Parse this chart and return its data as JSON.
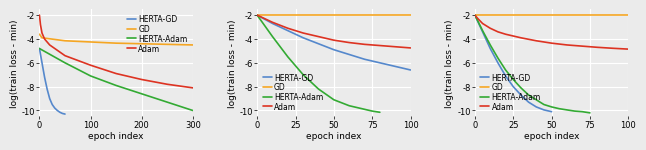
{
  "subplots": [
    {
      "xlim": [
        0,
        300
      ],
      "xticks": [
        0,
        100,
        200,
        300
      ],
      "ylim": [
        -10.5,
        -1.5
      ],
      "yticks": [
        -2,
        -4,
        -6,
        -8,
        -10
      ],
      "legend_loc": "upper right",
      "lines": [
        {
          "label": "HERTA-GD",
          "color": "#5588cc",
          "x": [
            0,
            5,
            10,
            15,
            20,
            25,
            30,
            35,
            40,
            45,
            50
          ],
          "y": [
            -4.8,
            -6.0,
            -7.2,
            -8.2,
            -9.0,
            -9.5,
            -9.8,
            -10.0,
            -10.15,
            -10.25,
            -10.3
          ]
        },
        {
          "label": "GD",
          "color": "#f5a623",
          "x": [
            0,
            5,
            50,
            100,
            150,
            200,
            250,
            300
          ],
          "y": [
            -3.6,
            -3.9,
            -4.15,
            -4.25,
            -4.35,
            -4.4,
            -4.45,
            -4.5
          ]
        },
        {
          "label": "HERTA-Adam",
          "color": "#33aa33",
          "x": [
            0,
            50,
            100,
            150,
            200,
            250,
            300
          ],
          "y": [
            -4.8,
            -6.0,
            -7.1,
            -7.9,
            -8.6,
            -9.3,
            -10.0
          ]
        },
        {
          "label": "Adam",
          "color": "#dd3322",
          "x": [
            0,
            2,
            5,
            10,
            20,
            50,
            100,
            150,
            200,
            250,
            300
          ],
          "y": [
            -2.0,
            -2.8,
            -3.5,
            -4.0,
            -4.5,
            -5.4,
            -6.2,
            -6.9,
            -7.4,
            -7.8,
            -8.1
          ]
        }
      ]
    },
    {
      "xlim": [
        0,
        100
      ],
      "xticks": [
        0,
        25,
        50,
        75,
        100
      ],
      "ylim": [
        -10.5,
        -1.5
      ],
      "yticks": [
        -2,
        -4,
        -6,
        -8,
        -10
      ],
      "legend_loc": "lower left",
      "lines": [
        {
          "label": "HERTA-GD",
          "color": "#5588cc",
          "x": [
            0,
            10,
            20,
            30,
            40,
            50,
            60,
            70,
            80,
            90,
            100
          ],
          "y": [
            -2.0,
            -2.7,
            -3.3,
            -3.9,
            -4.4,
            -4.9,
            -5.3,
            -5.7,
            -6.0,
            -6.3,
            -6.6
          ]
        },
        {
          "label": "GD",
          "color": "#f5a623",
          "x": [
            0,
            5,
            10,
            100
          ],
          "y": [
            -2.0,
            -2.0,
            -2.0,
            -2.0
          ]
        },
        {
          "label": "HERTA-Adam",
          "color": "#33aa33",
          "x": [
            0,
            10,
            20,
            30,
            40,
            50,
            60,
            70,
            75,
            80
          ],
          "y": [
            -2.0,
            -3.8,
            -5.5,
            -7.0,
            -8.2,
            -9.1,
            -9.6,
            -9.9,
            -10.05,
            -10.15
          ]
        },
        {
          "label": "Adam",
          "color": "#dd3322",
          "x": [
            0,
            10,
            20,
            30,
            40,
            50,
            60,
            70,
            80,
            90,
            100
          ],
          "y": [
            -2.0,
            -2.6,
            -3.1,
            -3.5,
            -3.8,
            -4.1,
            -4.3,
            -4.45,
            -4.55,
            -4.65,
            -4.75
          ]
        }
      ]
    },
    {
      "xlim": [
        0,
        100
      ],
      "xticks": [
        0,
        25,
        50,
        75,
        100
      ],
      "ylim": [
        -10.5,
        -1.5
      ],
      "yticks": [
        -2,
        -4,
        -6,
        -8,
        -10
      ],
      "legend_loc": "lower left",
      "lines": [
        {
          "label": "HERTA-GD",
          "color": "#5588cc",
          "x": [
            0,
            5,
            10,
            15,
            20,
            25,
            30,
            35,
            40,
            45,
            50
          ],
          "y": [
            -2.0,
            -3.4,
            -4.8,
            -6.0,
            -7.1,
            -8.0,
            -8.7,
            -9.3,
            -9.7,
            -9.95,
            -10.1
          ]
        },
        {
          "label": "GD",
          "color": "#f5a623",
          "x": [
            0,
            5,
            10,
            100
          ],
          "y": [
            -2.0,
            -2.0,
            -2.0,
            -2.0
          ]
        },
        {
          "label": "HERTA-Adam",
          "color": "#33aa33",
          "x": [
            0,
            5,
            10,
            15,
            20,
            25,
            30,
            35,
            40,
            45,
            50,
            55,
            60,
            65,
            70,
            75
          ],
          "y": [
            -2.0,
            -3.3,
            -4.5,
            -5.6,
            -6.6,
            -7.4,
            -8.1,
            -8.7,
            -9.1,
            -9.5,
            -9.7,
            -9.85,
            -9.95,
            -10.05,
            -10.1,
            -10.2
          ]
        },
        {
          "label": "Adam",
          "color": "#dd3322",
          "x": [
            0,
            2,
            5,
            10,
            15,
            20,
            30,
            40,
            50,
            60,
            70,
            80,
            90,
            100
          ],
          "y": [
            -2.0,
            -2.3,
            -2.7,
            -3.1,
            -3.4,
            -3.6,
            -3.9,
            -4.15,
            -4.35,
            -4.5,
            -4.6,
            -4.7,
            -4.78,
            -4.85
          ]
        }
      ]
    }
  ],
  "ylabel": "log(train loss - min)",
  "xlabel": "epoch index",
  "background_color": "#ebebeb",
  "grid_color": "#ffffff",
  "linewidth": 1.2,
  "fontsize_label": 6.5,
  "fontsize_tick": 6,
  "fontsize_legend": 5.5
}
